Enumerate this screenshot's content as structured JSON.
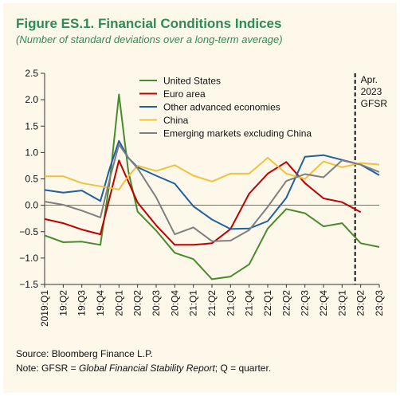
{
  "title": "Figure ES.1. Financial Conditions Indices",
  "subtitle": "(Number of standard deviations over a long-term average)",
  "source": "Source: Bloomberg Finance L.P.",
  "note": {
    "prefix": "Note: GFSR = ",
    "italic": "Global Financial Stability Report",
    "suffix": "; Q = quarter."
  },
  "chart_data": {
    "type": "line",
    "title": "Figure ES.1. Financial Conditions Indices",
    "subtitle": "(Number of standard deviations over a long-term average)",
    "ylim": [
      -1.5,
      2.5
    ],
    "yticks": [
      2.5,
      2.0,
      1.5,
      1.0,
      0.5,
      0.0,
      -0.5,
      -1.0,
      -1.5
    ],
    "ytick_labels": [
      "2.5",
      "2.0",
      "1.5",
      "1.0",
      "0.5",
      "0.0",
      "−0.5",
      "−1.0",
      "−1.5"
    ],
    "xtick_labels": [
      "2019:Q1",
      "19:Q2",
      "19:Q3",
      "19:Q4",
      "20:Q1",
      "20:Q2",
      "20:Q3",
      "20:Q4",
      "21:Q1",
      "21:Q2",
      "21:Q3",
      "21:Q4",
      "22:Q1",
      "22:Q2",
      "22:Q3",
      "22:Q4",
      "23:Q1",
      "23:Q2",
      "23:Q3"
    ],
    "x": [
      0,
      1,
      2,
      3,
      3.5,
      4,
      4.5,
      5,
      6,
      7,
      8,
      9,
      10,
      11,
      12,
      13,
      14,
      15,
      16,
      17,
      18
    ],
    "series": [
      {
        "name": "United States",
        "color": "#4a8a2e",
        "values": [
          -0.57,
          -0.7,
          -0.69,
          -0.75,
          0.45,
          2.1,
          0.65,
          -0.12,
          -0.48,
          -0.9,
          -1.02,
          -1.4,
          -1.35,
          -1.12,
          -0.44,
          -0.07,
          -0.15,
          -0.4,
          -0.34,
          -0.72,
          -0.79
        ]
      },
      {
        "name": "Euro area",
        "color": "#c00000",
        "values": [
          -0.26,
          -0.34,
          -0.46,
          -0.55,
          0.15,
          0.85,
          0.45,
          0.05,
          -0.38,
          -0.75,
          -0.75,
          -0.72,
          -0.45,
          0.22,
          0.6,
          0.82,
          0.42,
          0.13,
          0.06,
          -0.13,
          null
        ]
      },
      {
        "name": "Other advanced economies",
        "color": "#1f5fa3",
        "values": [
          0.29,
          0.24,
          0.28,
          0.08,
          0.7,
          1.22,
          0.9,
          0.72,
          0.56,
          0.41,
          -0.02,
          -0.27,
          -0.45,
          -0.44,
          -0.3,
          0.14,
          0.92,
          0.95,
          0.86,
          0.77,
          0.57
        ]
      },
      {
        "name": "China",
        "color": "#f2c13a",
        "values": [
          0.55,
          0.55,
          0.42,
          0.36,
          0.33,
          0.3,
          0.55,
          0.75,
          0.65,
          0.76,
          0.56,
          0.45,
          0.6,
          0.6,
          0.9,
          0.6,
          0.5,
          0.83,
          0.72,
          0.8,
          0.77
        ]
      },
      {
        "name": "Emerging markets excluding China",
        "color": "#7f7f7f",
        "values": [
          0.07,
          0.01,
          -0.1,
          -0.23,
          0.5,
          1.15,
          0.9,
          0.7,
          0.15,
          -0.55,
          -0.42,
          -0.68,
          -0.67,
          -0.47,
          -0.03,
          0.46,
          0.59,
          0.53,
          0.85,
          0.77,
          0.63
        ]
      }
    ],
    "annotation": {
      "lines": [
        "Apr.",
        "2023",
        "GFSR"
      ],
      "x": 16.7
    },
    "legend_placement": "top-left"
  }
}
